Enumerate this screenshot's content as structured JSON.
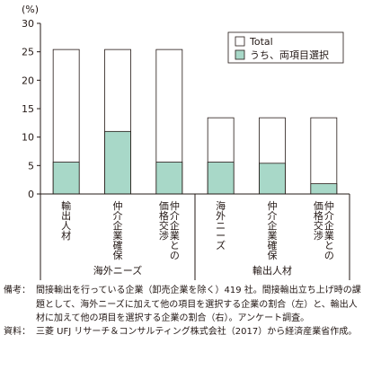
{
  "chart_data": {
    "type": "bar",
    "unit_label": "(%)",
    "ylim": [
      0,
      30
    ],
    "yticks": [
      0,
      5,
      10,
      15,
      20,
      25,
      30
    ],
    "categories": [
      "輸出人材",
      "仲介企業確保",
      "価格交渉",
      "海外ニーズ",
      "仲介企業確保",
      "価格交渉"
    ],
    "category_lines": [
      [
        "輸出人材"
      ],
      [
        "仲介企業確保"
      ],
      [
        "仲介企業との",
        "価格交渉"
      ],
      [
        "海外ニーズ"
      ],
      [
        "仲介企業確保"
      ],
      [
        "仲介企業との",
        "価格交渉"
      ]
    ],
    "groups": [
      {
        "label": "海外ニーズ",
        "count": 3
      },
      {
        "label": "輸出人材",
        "count": 3
      }
    ],
    "series": [
      {
        "name": "Total",
        "values": [
          25.4,
          25.4,
          25.4,
          13.4,
          13.4,
          13.4
        ],
        "color": "#ffffff"
      },
      {
        "name": "うち、両項目選択",
        "values": [
          5.6,
          11.0,
          5.6,
          5.6,
          5.4,
          1.8
        ],
        "color": "#a8d8c8"
      }
    ],
    "legend_position": "top-right",
    "grid": false
  },
  "notes": {
    "biko_head": "備考：",
    "biko_body": "間接輸出を行っている企業（卸売企業を除く）419 社。間接輸出立ち上げ時の課題として、海外ニーズに加えて他の項目を選択する企業の割合（左）と、輸出人材に加えて他の項目を選択する企業の割合（右）。アンケート調査。",
    "source_head": "資料：",
    "source_body": "三菱 UFJ リサーチ＆コンサルティング株式会社（2017）から経済産業省作成。"
  },
  "colors": {
    "axis": "#231815",
    "teal": "#a8d8c8",
    "border": "#231815"
  }
}
